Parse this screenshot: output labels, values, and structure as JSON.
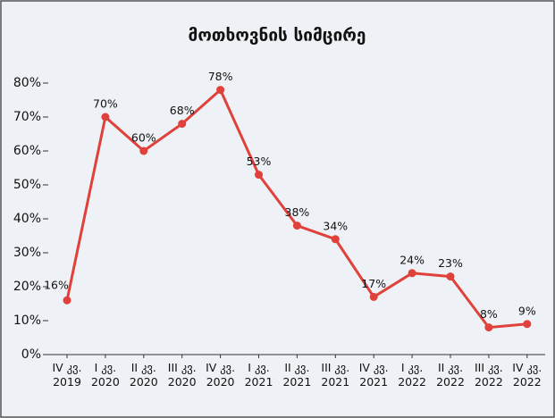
{
  "chart_data": {
    "type": "line",
    "title": "მოთხოვნის სიმცირე",
    "categories": [
      "IV კვ.\n2019",
      "I კვ.\n2020",
      "II კვ.\n2020",
      "III კვ.\n2020",
      "IV კვ.\n2020",
      "I კვ.\n2021",
      "II კვ.\n2021",
      "III კვ.\n2021",
      "IV კვ.\n2021",
      "I კვ.\n2022",
      "II კვ.\n2022",
      "III კვ.\n2022",
      "IV კვ.\n2022"
    ],
    "series": [
      {
        "color": "#e0413a",
        "values": [
          16,
          70,
          60,
          68,
          78,
          53,
          38,
          34,
          17,
          24,
          23,
          8,
          9
        ],
        "value_labels": [
          "16%",
          "70%",
          "60%",
          "68%",
          "78%",
          "53%",
          "38%",
          "34%",
          "17%",
          "24%",
          "23%",
          "8%",
          "9%"
        ]
      }
    ],
    "ylim": [
      0,
      80
    ],
    "yticks": [
      {
        "value": 0,
        "label": "0%"
      },
      {
        "value": 10,
        "label": "10%"
      },
      {
        "value": 20,
        "label": "20%"
      },
      {
        "value": 30,
        "label": "30%"
      },
      {
        "value": 40,
        "label": "40%"
      },
      {
        "value": 50,
        "label": "50%"
      },
      {
        "value": 60,
        "label": "60%"
      },
      {
        "value": 70,
        "label": "70%"
      },
      {
        "value": 80,
        "label": "80%"
      }
    ]
  }
}
